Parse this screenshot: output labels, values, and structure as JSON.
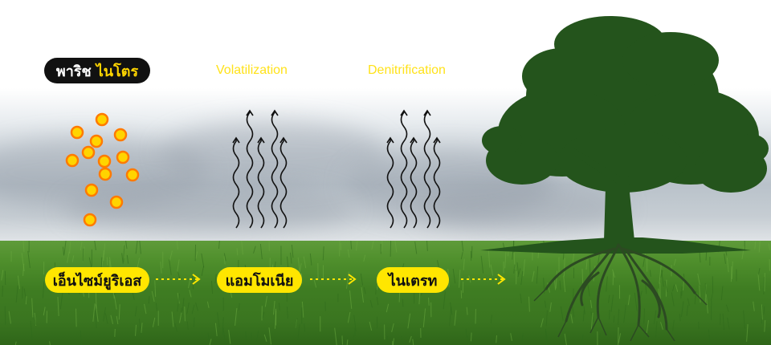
{
  "title": {
    "main": "พาริช",
    "accent": "ไนโตร"
  },
  "processes": {
    "volatilization": "Volatilization",
    "denitrification": "Denitrification"
  },
  "steps": [
    {
      "label": "เอ็นไซม์ยูริเอส"
    },
    {
      "label": "แอมโมเนีย"
    },
    {
      "label": "ไนเตรท"
    }
  ],
  "colors": {
    "yellow": "#ffe600",
    "orange": "#ff8a00",
    "tree": "#24541c",
    "grass": "#3f7d22"
  },
  "icons": [
    "granule-icon",
    "gas-wave-icon",
    "arrow-right-icon",
    "tree-icon"
  ]
}
